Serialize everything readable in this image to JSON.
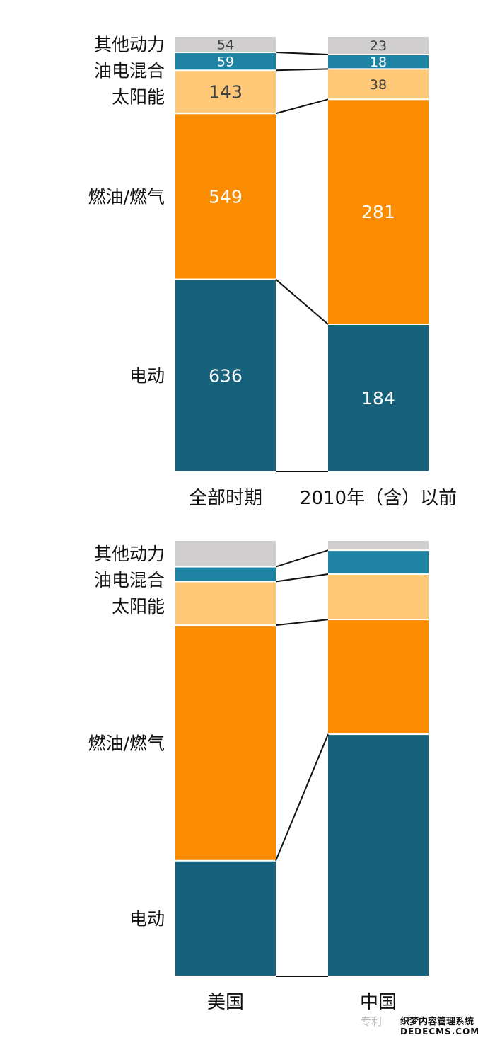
{
  "chart_data": [
    {
      "type": "bar",
      "stacked": "100%",
      "categories": [
        "全部时期",
        "2010年（含）以前"
      ],
      "series": [
        {
          "name": "电动",
          "values": [
            636,
            184
          ],
          "color": "#16627C"
        },
        {
          "name": "燃油/燃气",
          "values": [
            549,
            281
          ],
          "color": "#FB8C00"
        },
        {
          "name": "太阳能",
          "values": [
            143,
            38
          ],
          "color": "#FEC876"
        },
        {
          "name": "油电混合",
          "values": [
            59,
            18
          ],
          "color": "#1F83A3"
        },
        {
          "name": "其他动力",
          "values": [
            54,
            23
          ],
          "color": "#D0CECE"
        }
      ],
      "data_labels": true
    },
    {
      "type": "bar",
      "stacked": "100%",
      "categories": [
        "美国",
        "中国"
      ],
      "series": [
        {
          "name": "电动",
          "values": [
            26.5,
            55.5
          ],
          "color": "#16627C"
        },
        {
          "name": "燃油/燃气",
          "values": [
            54,
            26.3
          ],
          "color": "#FB8C00"
        },
        {
          "name": "太阳能",
          "values": [
            10,
            10.4
          ],
          "color": "#FEC876"
        },
        {
          "name": "油电混合",
          "values": [
            3.4,
            5.5
          ],
          "color": "#1F83A3"
        },
        {
          "name": "其他动力",
          "values": [
            6.1,
            2.3
          ],
          "color": "#D0CECE"
        }
      ],
      "data_labels": false
    }
  ],
  "watermark": {
    "text1": "专利",
    "text2": "织梦内容管理系统",
    "text3": "DEDECMS.COM"
  }
}
